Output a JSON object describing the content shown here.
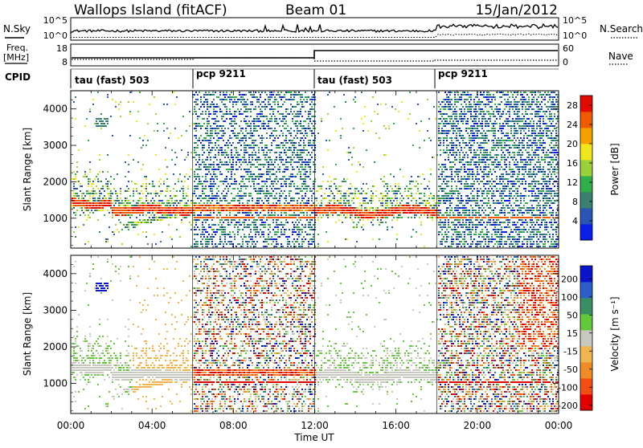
{
  "header": {
    "station": "Wallops Island (fitACF)",
    "beam": "Beam 01",
    "date": "15/Jan/2012"
  },
  "labels": {
    "nsky": "N.Sky",
    "nsearch": "N.Search",
    "freq_line1": "Freq.",
    "freq_line2": "[MHz]",
    "nave": "Nave",
    "cpid": "CPID",
    "x_axis": "Time UT",
    "y_axis": "Slant Range [km]",
    "power_cbar": "Power [dB]",
    "velocity_cbar": "Velocity [m s⁻¹]"
  },
  "noise_panel": {
    "left_ticks": [
      "10^5",
      "10^0"
    ],
    "right_ticks": [
      "10^5",
      "10^0"
    ]
  },
  "freq_panel": {
    "left_ticks": [
      "18",
      "8"
    ],
    "right_ticks": [
      "60",
      "0"
    ]
  },
  "cpid_segments": [
    {
      "label": "tau (fast) 503",
      "start_hour": 0
    },
    {
      "label": "pcp 9211",
      "start_hour": 6
    },
    {
      "label": "tau (fast) 503",
      "start_hour": 12
    },
    {
      "label": "pcp 9211",
      "start_hour": 18
    }
  ],
  "chart_data": [
    {
      "type": "heatmap",
      "name": "Power",
      "xlabel": "Time UT",
      "ylabel": "Slant Range [km]",
      "x_ticks": [
        "00:00",
        "04:00",
        "08:00",
        "12:00",
        "16:00",
        "20:00",
        "00:00"
      ],
      "xlim_hours": [
        0,
        24
      ],
      "y_ticks": [
        1000,
        2000,
        3000,
        4000
      ],
      "ylim": [
        180,
        4500
      ],
      "colorbar": {
        "label": "Power [dB]",
        "ticks": [
          4,
          8,
          12,
          16,
          20,
          24,
          28
        ],
        "range": [
          0,
          30
        ],
        "colors": [
          "#0a1ee6",
          "#2a55b4",
          "#3a7f70",
          "#2fae4a",
          "#9ad23c",
          "#f0e61e",
          "#f5a000",
          "#f05a00",
          "#e10a00"
        ]
      }
    },
    {
      "type": "heatmap",
      "name": "Velocity",
      "xlabel": "Time UT",
      "ylabel": "Slant Range [km]",
      "x_ticks": [
        "00:00",
        "04:00",
        "08:00",
        "12:00",
        "16:00",
        "20:00",
        "00:00"
      ],
      "xlim_hours": [
        0,
        24
      ],
      "y_ticks": [
        1000,
        2000,
        3000,
        4000
      ],
      "ylim": [
        180,
        4500
      ],
      "colorbar": {
        "label": "Velocity [m s⁻¹]",
        "ticks": [
          200,
          100,
          50,
          15,
          -15,
          -50,
          -100,
          -200
        ],
        "colors": [
          "#0a14c8",
          "#2d5fc8",
          "#3c8c64",
          "#64c83c",
          "#c8c8c0",
          "#f0b450",
          "#f08c28",
          "#f05014",
          "#e10000"
        ]
      }
    }
  ]
}
